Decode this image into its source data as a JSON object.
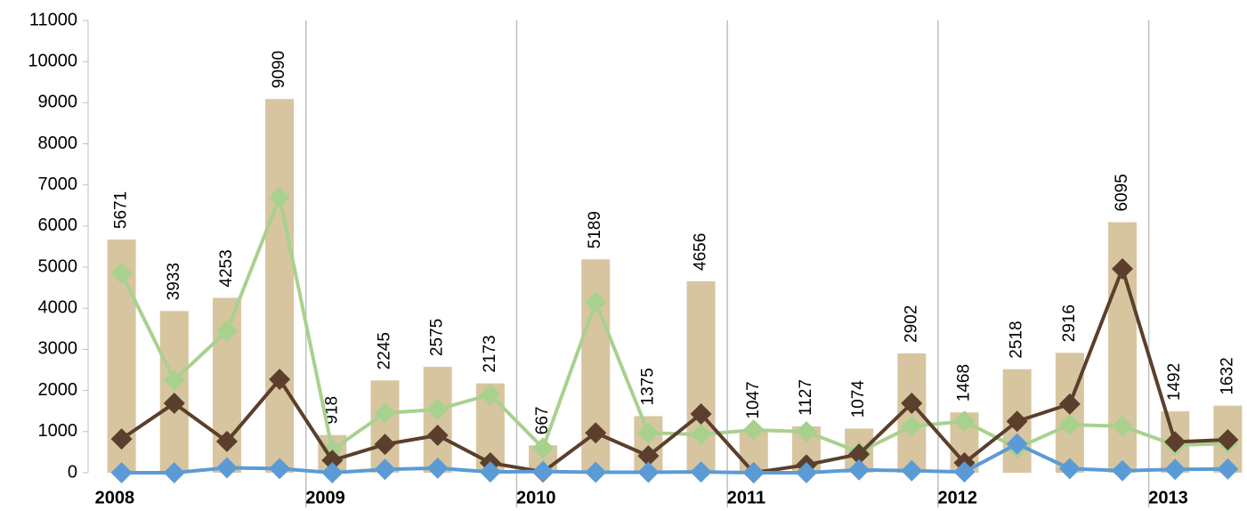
{
  "chart_data": {
    "type": "combo",
    "categories": [
      "2008",
      null,
      null,
      null,
      "2009",
      null,
      null,
      null,
      "2010",
      null,
      null,
      null,
      "2011",
      null,
      null,
      null,
      "2012",
      null,
      null,
      null,
      "2013",
      null
    ],
    "series": [
      {
        "type": "bar",
        "color": "#d7c5a0",
        "values": [
          5671,
          3933,
          4253,
          9090,
          918,
          2245,
          2575,
          2173,
          667,
          5189,
          1375,
          4656,
          1047,
          1127,
          1074,
          2902,
          1468,
          2518,
          2916,
          6095,
          1492,
          1632
        ]
      },
      {
        "type": "line",
        "color": "#a9d18e",
        "values": [
          4850,
          2250,
          3450,
          6700,
          560,
          1450,
          1540,
          1900,
          600,
          4150,
          970,
          930,
          1040,
          1000,
          500,
          1130,
          1250,
          600,
          1170,
          1130,
          670,
          710
        ]
      },
      {
        "type": "line",
        "color": "#5b3f2c",
        "values": [
          820,
          1690,
          760,
          2270,
          300,
          690,
          910,
          240,
          20,
          970,
          410,
          1430,
          0,
          190,
          450,
          1690,
          240,
          1250,
          1670,
          4960,
          750,
          800
        ]
      },
      {
        "type": "line",
        "color": "#5b9bd5",
        "values": [
          0,
          0,
          120,
          100,
          0,
          80,
          110,
          20,
          30,
          10,
          10,
          20,
          0,
          0,
          70,
          50,
          20,
          700,
          100,
          50,
          80,
          90
        ]
      }
    ],
    "ylim": [
      0,
      11000
    ],
    "yticks": [
      0,
      1000,
      2000,
      3000,
      4000,
      5000,
      6000,
      7000,
      8000,
      9000,
      10000,
      11000
    ]
  }
}
